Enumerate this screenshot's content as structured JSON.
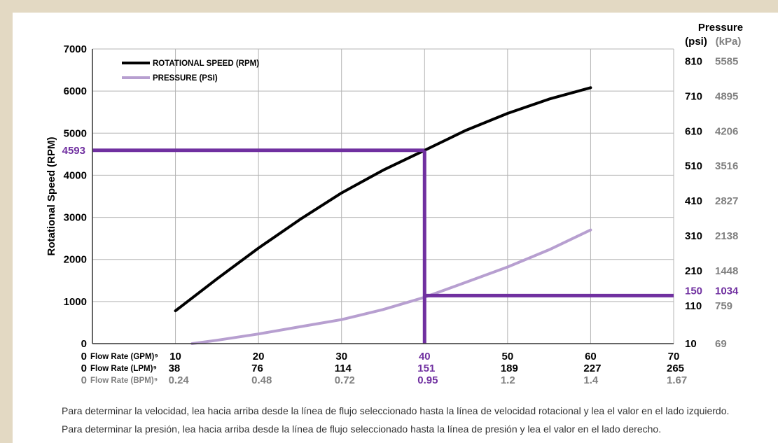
{
  "colors": {
    "background": "#e3d9c3",
    "panel": "#ffffff",
    "speed": "#000000",
    "pressure": "#b79fd0",
    "highlight": "#7030a0",
    "kpa_text": "#808080",
    "grid": "#b4b4b4"
  },
  "chart_data": {
    "type": "line",
    "ylabel": "Rotational Speed (RPM)",
    "ylim": [
      0,
      7000
    ],
    "y_ticks": [
      0,
      1000,
      2000,
      3000,
      4000,
      5000,
      6000,
      7000
    ],
    "xlim": [
      0,
      70
    ],
    "x_rows": [
      {
        "label": "Flow Rate (GPM)⁹",
        "zero": "0",
        "values": [
          "10",
          "20",
          "30",
          "40",
          "50",
          "60",
          "70"
        ]
      },
      {
        "label": "Flow Rate (LPM)⁹",
        "zero": "0",
        "values": [
          "38",
          "76",
          "114",
          "151",
          "189",
          "227",
          "265"
        ]
      },
      {
        "label": "Flow Rate (BPM)⁹",
        "zero": "0",
        "values": [
          "0.24",
          "0.48",
          "0.72",
          "0.95",
          "1.2",
          "1.4",
          "1.67"
        ]
      }
    ],
    "right_axis": {
      "title": "Pressure",
      "unit_psi": "(psi)",
      "unit_kpa": "(kPa)",
      "ticks": [
        {
          "psi": "10",
          "kpa": "69",
          "rpm_level": 0
        },
        {
          "psi": "110",
          "kpa": "759",
          "rpm_level": 900
        },
        {
          "psi": "210",
          "kpa": "1448",
          "rpm_level": 1730
        },
        {
          "psi": "310",
          "kpa": "2138",
          "rpm_level": 2560
        },
        {
          "psi": "410",
          "kpa": "2827",
          "rpm_level": 3390
        },
        {
          "psi": "510",
          "kpa": "3516",
          "rpm_level": 4220
        },
        {
          "psi": "610",
          "kpa": "4206",
          "rpm_level": 5050
        },
        {
          "psi": "710",
          "kpa": "4895",
          "rpm_level": 5880
        },
        {
          "psi": "810",
          "kpa": "5585",
          "rpm_level": 6710
        }
      ]
    },
    "series": [
      {
        "name": "ROTATIONAL SPEED (RPM)",
        "x": [
          10,
          15,
          20,
          25,
          30,
          35,
          40,
          45,
          50,
          55,
          60
        ],
        "y": [
          780,
          1540,
          2270,
          2950,
          3580,
          4120,
          4593,
          5070,
          5470,
          5810,
          6080
        ]
      },
      {
        "name": "PRESSURE (PSI)",
        "x": [
          12,
          15,
          20,
          25,
          30,
          35,
          40,
          45,
          50,
          55,
          60
        ],
        "y": [
          0,
          80,
          230,
          400,
          570,
          810,
          1100,
          1460,
          1820,
          2230,
          2700
        ]
      }
    ],
    "highlight": {
      "flow_gpm": 40,
      "speed_rpm": 4593,
      "speed_label": "4593",
      "pressure_psi": "150",
      "pressure_kpa": "1034",
      "pressure_rpm_level": 1140
    },
    "legend": "top-left",
    "grid": true
  },
  "caption": {
    "line1": "Para determinar la velocidad, lea hacia arriba desde la línea de flujo seleccionado hasta la línea de velocidad rotacional y lea el valor en el lado izquierdo.",
    "line2": "Para determinar la presión, lea hacia arriba desde la línea de flujo seleccionado hasta la línea de presión y lea el valor en el lado derecho."
  }
}
